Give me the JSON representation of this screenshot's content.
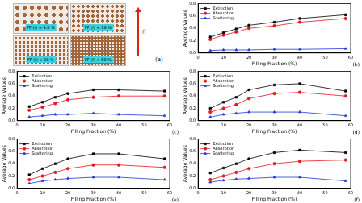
{
  "panel_a": {
    "label": "(a)",
    "arrow_label": "ff",
    "captions": [
      "FF (f) = 4.8 %",
      "FF (f) = 19 %",
      "FF (f) = 38 %",
      "FF (f) = 58 %"
    ]
  },
  "chart_data": [
    {
      "type": "line",
      "label": "(b)",
      "x_label": "Filling Fraction (%)",
      "y_label": "Average Values",
      "legend": "upper left",
      "x": [
        4.8,
        10,
        15,
        20,
        30,
        40,
        58
      ],
      "xlim": [
        0,
        60
      ],
      "xticks": [
        0,
        10,
        20,
        30,
        40,
        50,
        60
      ],
      "ylim": [
        0,
        0.8
      ],
      "yticks": [
        {
          "value": 0,
          "label": "0.0"
        },
        0.2,
        0.4,
        0.6,
        0.8
      ],
      "series": [
        {
          "name": "Extinction",
          "color": "#000000",
          "marker": "square",
          "values": [
            0.26,
            0.33,
            0.39,
            0.45,
            0.5,
            0.56,
            0.62
          ]
        },
        {
          "name": "Absorption",
          "color": "#e8141e",
          "marker": "circle",
          "values": [
            0.22,
            0.29,
            0.34,
            0.4,
            0.44,
            0.5,
            0.56
          ]
        },
        {
          "name": "Scattering",
          "color": "#1c39d8",
          "marker": "triangle",
          "values": [
            0.04,
            0.05,
            0.05,
            0.05,
            0.06,
            0.06,
            0.07
          ]
        }
      ]
    },
    {
      "type": "line",
      "label": "(c)",
      "x_label": "Filling Fraction (%)",
      "y_label": "Average Values",
      "legend": "upper left",
      "x": [
        4.8,
        10,
        15,
        20,
        30,
        40,
        58
      ],
      "xlim": [
        0,
        60
      ],
      "xticks": [
        0,
        10,
        20,
        30,
        40,
        50,
        60
      ],
      "ylim": [
        0,
        0.8
      ],
      "yticks": [
        {
          "value": 0,
          "label": "0.0"
        },
        0.2,
        0.4,
        0.6,
        0.8
      ],
      "series": [
        {
          "name": "Extinction",
          "color": "#000000",
          "marker": "square",
          "values": [
            0.23,
            0.3,
            0.38,
            0.44,
            0.5,
            0.5,
            0.48
          ]
        },
        {
          "name": "Absorption",
          "color": "#e8141e",
          "marker": "circle",
          "values": [
            0.17,
            0.22,
            0.28,
            0.34,
            0.38,
            0.4,
            0.4
          ]
        },
        {
          "name": "Scattering",
          "color": "#1c39d8",
          "marker": "triangle",
          "values": [
            0.06,
            0.08,
            0.1,
            0.1,
            0.12,
            0.1,
            0.08
          ]
        }
      ]
    },
    {
      "type": "line",
      "label": "(d)",
      "x_label": "Filling Fraction (%)",
      "y_label": "Average Values",
      "legend": "upper left",
      "x": [
        4.8,
        10,
        15,
        20,
        30,
        40,
        58
      ],
      "xlim": [
        0,
        60
      ],
      "xticks": [
        0,
        10,
        20,
        30,
        40,
        50,
        60
      ],
      "ylim": [
        0,
        0.8
      ],
      "yticks": [
        {
          "value": 0,
          "label": "0.0"
        },
        0.2,
        0.4,
        0.6,
        0.8
      ],
      "series": [
        {
          "name": "Extinction",
          "color": "#000000",
          "marker": "square",
          "values": [
            0.2,
            0.3,
            0.38,
            0.5,
            0.58,
            0.6,
            0.48
          ]
        },
        {
          "name": "Absorption",
          "color": "#e8141e",
          "marker": "circle",
          "values": [
            0.14,
            0.2,
            0.26,
            0.36,
            0.44,
            0.46,
            0.4
          ]
        },
        {
          "name": "Scattering",
          "color": "#1c39d8",
          "marker": "triangle",
          "values": [
            0.06,
            0.1,
            0.12,
            0.14,
            0.14,
            0.14,
            0.08
          ]
        }
      ]
    },
    {
      "type": "line",
      "label": "(e)",
      "x_label": "Filling Fraction (%)",
      "y_label": "Average Values",
      "legend": "upper left",
      "x": [
        4.8,
        10,
        15,
        20,
        30,
        40,
        58
      ],
      "xlim": [
        0,
        60
      ],
      "xticks": [
        0,
        10,
        20,
        30,
        40,
        50,
        60
      ],
      "ylim": [
        0,
        0.8
      ],
      "yticks": [
        {
          "value": 0,
          "label": "0.0"
        },
        0.2,
        0.4,
        0.6,
        0.8
      ],
      "series": [
        {
          "name": "Extinction",
          "color": "#000000",
          "marker": "square",
          "values": [
            0.22,
            0.32,
            0.4,
            0.48,
            0.56,
            0.56,
            0.48
          ]
        },
        {
          "name": "Absorption",
          "color": "#e8141e",
          "marker": "circle",
          "values": [
            0.14,
            0.2,
            0.26,
            0.32,
            0.38,
            0.38,
            0.34
          ]
        },
        {
          "name": "Scattering",
          "color": "#1c39d8",
          "marker": "triangle",
          "values": [
            0.08,
            0.12,
            0.14,
            0.16,
            0.18,
            0.18,
            0.14
          ]
        }
      ]
    },
    {
      "type": "line",
      "label": "(f)",
      "x_label": "Filling Fraction (%)",
      "y_label": "Average Values",
      "legend": "upper left",
      "x": [
        4.8,
        10,
        15,
        20,
        30,
        40,
        58
      ],
      "xlim": [
        0,
        60
      ],
      "xticks": [
        0,
        10,
        20,
        30,
        40,
        50,
        60
      ],
      "ylim": [
        0,
        0.8
      ],
      "yticks": [
        {
          "value": 0,
          "label": "0.0"
        },
        0.2,
        0.4,
        0.6,
        0.8
      ],
      "series": [
        {
          "name": "Extinction",
          "color": "#000000",
          "marker": "square",
          "values": [
            0.25,
            0.33,
            0.4,
            0.48,
            0.58,
            0.62,
            0.58
          ]
        },
        {
          "name": "Absorption",
          "color": "#e8141e",
          "marker": "circle",
          "values": [
            0.14,
            0.2,
            0.26,
            0.32,
            0.4,
            0.44,
            0.46
          ]
        },
        {
          "name": "Scattering",
          "color": "#1c39d8",
          "marker": "triangle",
          "values": [
            0.1,
            0.13,
            0.15,
            0.16,
            0.18,
            0.18,
            0.12
          ]
        }
      ]
    }
  ]
}
